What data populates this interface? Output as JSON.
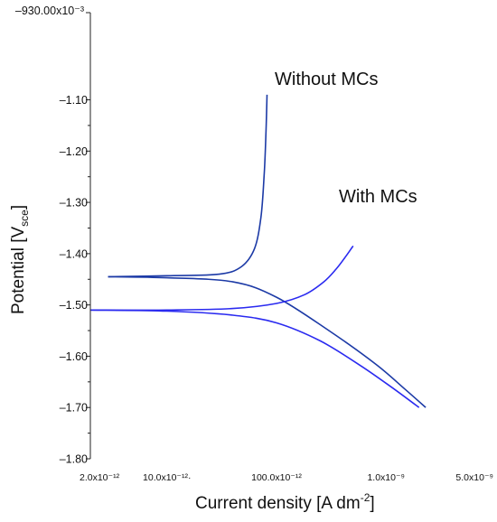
{
  "chart_data": {
    "type": "line",
    "title": "",
    "xlabel": "Current density [A dm",
    "xlabel_sup": "-2",
    "xlabel_close": "]",
    "ylabel": "Potential [V",
    "ylabel_sub": "sce",
    "ylabel_close": "]",
    "x_scale": "log",
    "xlim": [
      2e-12,
      5e-09
    ],
    "ylim": [
      -1.8,
      -0.93
    ],
    "y_top_label": "–930.00x10⁻³",
    "x_ticks": [
      {
        "value": 2e-12,
        "label": "2.0x10⁻¹²"
      },
      {
        "value": 1e-11,
        "label": "10.0x10⁻¹²·"
      },
      {
        "value": 1e-10,
        "label": "100.0x10⁻¹²"
      },
      {
        "value": 1e-09,
        "label": "1.0x10⁻⁹"
      },
      {
        "value": 5e-09,
        "label": "5.0x10⁻⁹"
      }
    ],
    "y_ticks": [
      {
        "value": -1.1,
        "label": "–1.10"
      },
      {
        "value": -1.2,
        "label": "–1.20"
      },
      {
        "value": -1.3,
        "label": "–1.30"
      },
      {
        "value": -1.4,
        "label": "–1.40"
      },
      {
        "value": -1.5,
        "label": "–1.50"
      },
      {
        "value": -1.6,
        "label": "–1.60"
      },
      {
        "value": -1.7,
        "label": "–1.70"
      },
      {
        "value": -1.8,
        "label": "–1.80"
      }
    ],
    "grid": false,
    "legend": "none",
    "series": [
      {
        "name": "Without MCs",
        "color": "#1c3aa6",
        "anodic": {
          "x": [
            2.9e-12,
            1e-11,
            3e-11,
            4.8e-11,
            6.3e-11,
            7.2e-11,
            7.7e-11,
            8e-11,
            8.2e-11
          ],
          "y": [
            -1.445,
            -1.443,
            -1.44,
            -1.425,
            -1.39,
            -1.33,
            -1.25,
            -1.17,
            -1.09
          ]
        },
        "cathodic": {
          "x": [
            2.9e-12,
            1e-11,
            4e-11,
            1e-10,
            3e-10,
            8e-10,
            1.5e-09,
            2.3e-09
          ],
          "y": [
            -1.445,
            -1.447,
            -1.455,
            -1.485,
            -1.55,
            -1.615,
            -1.665,
            -1.7
          ]
        }
      },
      {
        "name": "With MCs",
        "color": "#2a2af0",
        "anodic": {
          "x": [
            2e-12,
            1e-11,
            4e-11,
            1e-10,
            1.8e-10,
            2.7e-10,
            3.5e-10,
            4.3e-10,
            5e-10
          ],
          "y": [
            -1.51,
            -1.51,
            -1.507,
            -1.497,
            -1.48,
            -1.455,
            -1.43,
            -1.405,
            -1.385
          ]
        },
        "cathodic": {
          "x": [
            2e-12,
            1e-11,
            4e-11,
            1e-10,
            2.5e-10,
            6e-10,
            1.2e-09,
            2e-09
          ],
          "y": [
            -1.51,
            -1.512,
            -1.52,
            -1.535,
            -1.57,
            -1.62,
            -1.665,
            -1.7
          ]
        }
      }
    ],
    "annotations": [
      {
        "text": "Without MCs",
        "series": "Without MCs"
      },
      {
        "text": "With MCs",
        "series": "With MCs"
      }
    ]
  }
}
